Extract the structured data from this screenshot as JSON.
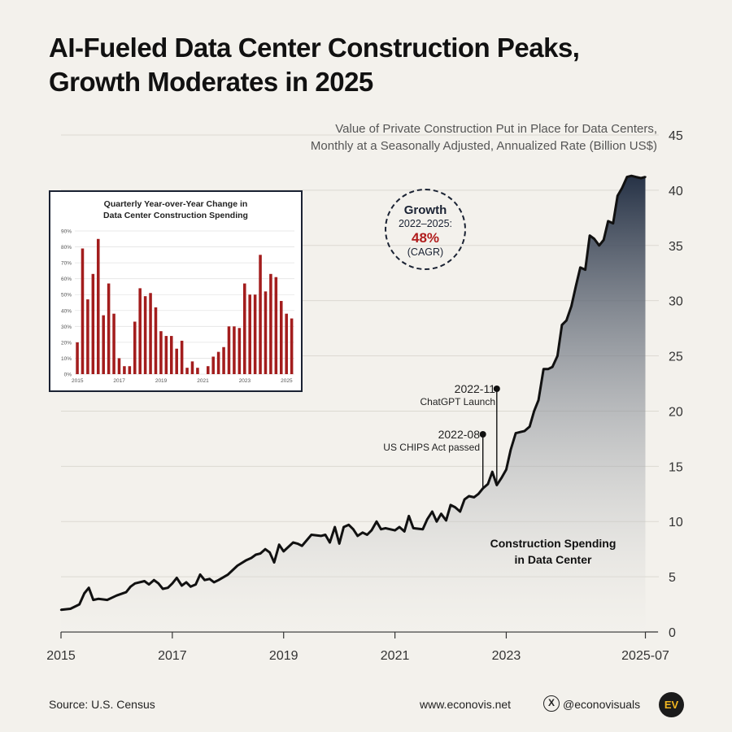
{
  "title_line1": "AI-Fueled Data Center Construction Peaks,",
  "title_line2": "Growth Moderates in 2025",
  "subtitle_line1": "Value of Private Construction Put in Place for Data Centers,",
  "subtitle_line2": "Monthly at a Seasonally Adjusted, Annualized Rate (Billion US$)",
  "growth": {
    "label": "Growth",
    "period": "2022–2025:",
    "value": "48%",
    "unit": "(CAGR)"
  },
  "annotations": [
    {
      "date": "2022-11",
      "label": "ChatGPT Launch",
      "x": 2022.83
    },
    {
      "date": "2022-08",
      "label": "US CHIPS Act passed",
      "x": 2022.58
    }
  ],
  "area_label_line1": "Construction Spending",
  "area_label_line2": "in Data Center",
  "footer": {
    "source": "Source: U.S. Census",
    "site": "www.econovis.net",
    "x_icon": "x-logo-icon",
    "x_glyph": "X",
    "handle": "@econovisuals",
    "logo": "EV"
  },
  "colors": {
    "line": "#111111",
    "area_top": "#263246",
    "area_bottom": "#f3f1ec",
    "bar": "#a31d1d",
    "badge_value": "#b01c1c",
    "logo_bg": "#1b1b1b",
    "logo_fg": "#f2b720"
  },
  "chart_data": [
    {
      "type": "area",
      "xlim": [
        2015,
        2025.58
      ],
      "ylim": [
        0,
        45
      ],
      "x_ticks": [
        {
          "value": 2015,
          "label": "2015"
        },
        {
          "value": 2017,
          "label": "2017"
        },
        {
          "value": 2019,
          "label": "2019"
        },
        {
          "value": 2021,
          "label": "2021"
        },
        {
          "value": 2023,
          "label": "2023"
        },
        {
          "value": 2025.5,
          "label": "2025-07"
        }
      ],
      "y_ticks": [
        0,
        5,
        10,
        15,
        20,
        25,
        30,
        35,
        40,
        45
      ],
      "grid": true,
      "series": [
        {
          "x": [
            2015.0,
            2015.17,
            2015.33,
            2015.42,
            2015.5,
            2015.58,
            2015.67,
            2015.83,
            2016.0,
            2016.17,
            2016.25,
            2016.33,
            2016.5,
            2016.58,
            2016.67,
            2016.75,
            2016.83,
            2016.92,
            2017.0,
            2017.08,
            2017.17,
            2017.25,
            2017.33,
            2017.42,
            2017.5,
            2017.58,
            2017.67,
            2017.75,
            2017.83,
            2018.0,
            2018.17,
            2018.33,
            2018.42,
            2018.5,
            2018.58,
            2018.67,
            2018.75,
            2018.83,
            2018.92,
            2019.0,
            2019.17,
            2019.25,
            2019.33,
            2019.5,
            2019.67,
            2019.75,
            2019.83,
            2019.92,
            2020.0,
            2020.08,
            2020.17,
            2020.25,
            2020.33,
            2020.42,
            2020.5,
            2020.58,
            2020.67,
            2020.75,
            2020.83,
            2021.0,
            2021.08,
            2021.17,
            2021.25,
            2021.33,
            2021.5,
            2021.58,
            2021.67,
            2021.75,
            2021.83,
            2021.92,
            2022.0,
            2022.08,
            2022.17,
            2022.25,
            2022.33,
            2022.42,
            2022.5,
            2022.58,
            2022.67,
            2022.75,
            2022.83,
            2022.92,
            2023.0,
            2023.08,
            2023.17,
            2023.25,
            2023.33,
            2023.42,
            2023.5,
            2023.58,
            2023.67,
            2023.75,
            2023.83,
            2023.92,
            2024.0,
            2024.08,
            2024.17,
            2024.25,
            2024.33,
            2024.42,
            2024.5,
            2024.58,
            2024.67,
            2024.75,
            2024.83,
            2024.92,
            2025.0,
            2025.08,
            2025.17,
            2025.25,
            2025.33,
            2025.42,
            2025.5
          ],
          "y": [
            2.0,
            2.1,
            2.5,
            3.5,
            4.0,
            2.9,
            3.0,
            2.9,
            3.3,
            3.6,
            4.1,
            4.4,
            4.6,
            4.3,
            4.7,
            4.4,
            3.9,
            4.0,
            4.4,
            4.9,
            4.2,
            4.5,
            4.1,
            4.3,
            5.2,
            4.7,
            4.8,
            4.5,
            4.7,
            5.2,
            6.0,
            6.5,
            6.7,
            7.0,
            7.1,
            7.5,
            7.2,
            6.3,
            7.9,
            7.3,
            8.1,
            8.0,
            7.8,
            8.8,
            8.7,
            8.8,
            8.1,
            9.5,
            8.0,
            9.5,
            9.7,
            9.3,
            8.7,
            9.0,
            8.8,
            9.2,
            10.0,
            9.3,
            9.4,
            9.2,
            9.5,
            9.1,
            10.5,
            9.4,
            9.3,
            10.2,
            10.9,
            10.0,
            10.7,
            10.1,
            11.5,
            11.3,
            10.9,
            12.0,
            12.3,
            12.2,
            12.5,
            13.0,
            13.4,
            14.5,
            13.3,
            14.0,
            14.7,
            16.5,
            18.0,
            18.1,
            18.2,
            18.6,
            20.0,
            21.0,
            23.8,
            23.8,
            24.0,
            25.0,
            27.8,
            28.2,
            29.5,
            31.3,
            33.0,
            32.8,
            35.9,
            35.6,
            35.0,
            35.5,
            37.2,
            37.0,
            39.5,
            40.2,
            41.2,
            41.3,
            41.2,
            41.1,
            41.2
          ]
        }
      ]
    },
    {
      "type": "bar",
      "title_line1": "Quarterly Year-over-Year Change in",
      "title_line2": "Data Center Construction Spending",
      "ylim": [
        0,
        90
      ],
      "y_ticks": [
        {
          "value": 0,
          "label": "0%"
        },
        {
          "value": 10,
          "label": "10%"
        },
        {
          "value": 20,
          "label": "20%"
        },
        {
          "value": 30,
          "label": "30%"
        },
        {
          "value": 40,
          "label": "40%"
        },
        {
          "value": 50,
          "label": "50%"
        },
        {
          "value": 60,
          "label": "60%"
        },
        {
          "value": 70,
          "label": "70%"
        },
        {
          "value": 80,
          "label": "80%"
        },
        {
          "value": 90,
          "label": "90%"
        }
      ],
      "x_ticks": [
        {
          "index": 0,
          "label": "2015"
        },
        {
          "index": 8,
          "label": "2017"
        },
        {
          "index": 16,
          "label": "2019"
        },
        {
          "index": 24,
          "label": "2021"
        },
        {
          "index": 32,
          "label": "2023"
        },
        {
          "index": 40,
          "label": "2025"
        }
      ],
      "values": [
        20,
        79,
        47,
        63,
        85,
        37,
        57,
        38,
        10,
        5,
        5,
        33,
        54,
        49,
        51,
        42,
        27,
        24,
        24,
        16,
        21,
        4,
        8,
        4,
        0,
        5,
        11,
        14,
        17,
        30,
        30,
        29,
        57,
        50,
        50,
        75,
        52,
        63,
        61,
        46,
        38,
        35
      ]
    }
  ]
}
